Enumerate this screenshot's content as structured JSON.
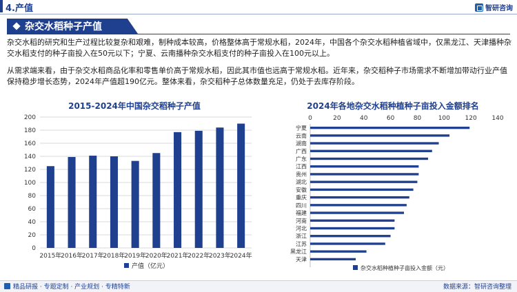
{
  "header": {
    "section_title": "4.产值",
    "logo_text": "智研咨询"
  },
  "banner": {
    "title": "杂交水稻种子产值"
  },
  "paragraphs": {
    "p1": "杂交水稻的研究和生产过程比较复杂和艰难，制种成本较高，价格整体高于常规水稻，2024年，中国各个杂交水稻种植省域中，仅黑龙江、天津播种杂交水稻支付的种子亩投入在50元以下；宁夏、云南播种杂交水稻支付的种子亩投入在100元以上。",
    "p2": "从需求端来看，由于杂交水稻商品化率和零售单价高于常规水稻，因此其市值也远高于常规水稻。近年来，杂交稻种子市场需求不断增加带动行业产值保持稳步增长态势，2024年产值超190亿元。整体来看，杂交稻种子总体数量充足，仍处于去库存阶段。"
  },
  "chart_data": [
    {
      "type": "bar",
      "title": "2015-2024年中国杂交稻种子产值",
      "categories": [
        "2015年",
        "2016年",
        "2017年",
        "2018年",
        "2019年",
        "2020年",
        "2021年",
        "2022年",
        "2023年",
        "2024年"
      ],
      "series": [
        {
          "name": "产值（亿元）",
          "values": [
            125,
            139,
            141,
            140,
            133,
            145,
            177,
            179,
            184,
            190
          ]
        }
      ],
      "ylim": [
        0,
        200
      ],
      "yticks": [
        0,
        20,
        40,
        60,
        80,
        100,
        120,
        140,
        160,
        180,
        200
      ],
      "grid": true,
      "legend": "bottom",
      "color": "#1f3f8f"
    },
    {
      "type": "bar",
      "orientation": "horizontal",
      "title": "2024年各地杂交水稻种植种子亩投入金额排名",
      "categories": [
        "宁夏",
        "云南",
        "湖南",
        "广西",
        "广东",
        "江西",
        "贵州",
        "湖北",
        "安徽",
        "重庆",
        "四川",
        "福建",
        "河南",
        "河北",
        "浙江",
        "江苏",
        "黑龙江",
        "天津"
      ],
      "series": [
        {
          "name": "杂交水稻种植种子亩投入金额（元）",
          "values": [
            119,
            104,
            96,
            91,
            88,
            81,
            81,
            80,
            77,
            74,
            72,
            70,
            63,
            63,
            60,
            56,
            42,
            34
          ]
        }
      ],
      "xlim": [
        0,
        140
      ],
      "xticks": [
        0,
        20,
        40,
        60,
        80,
        100,
        120,
        140
      ],
      "legend": "bottom",
      "color": "#1f3f8f"
    }
  ],
  "footer": {
    "left": "精品研报 · 专题定制 · 产业规划 · 专精特新",
    "right": "数据来源：智研咨询整理"
  }
}
